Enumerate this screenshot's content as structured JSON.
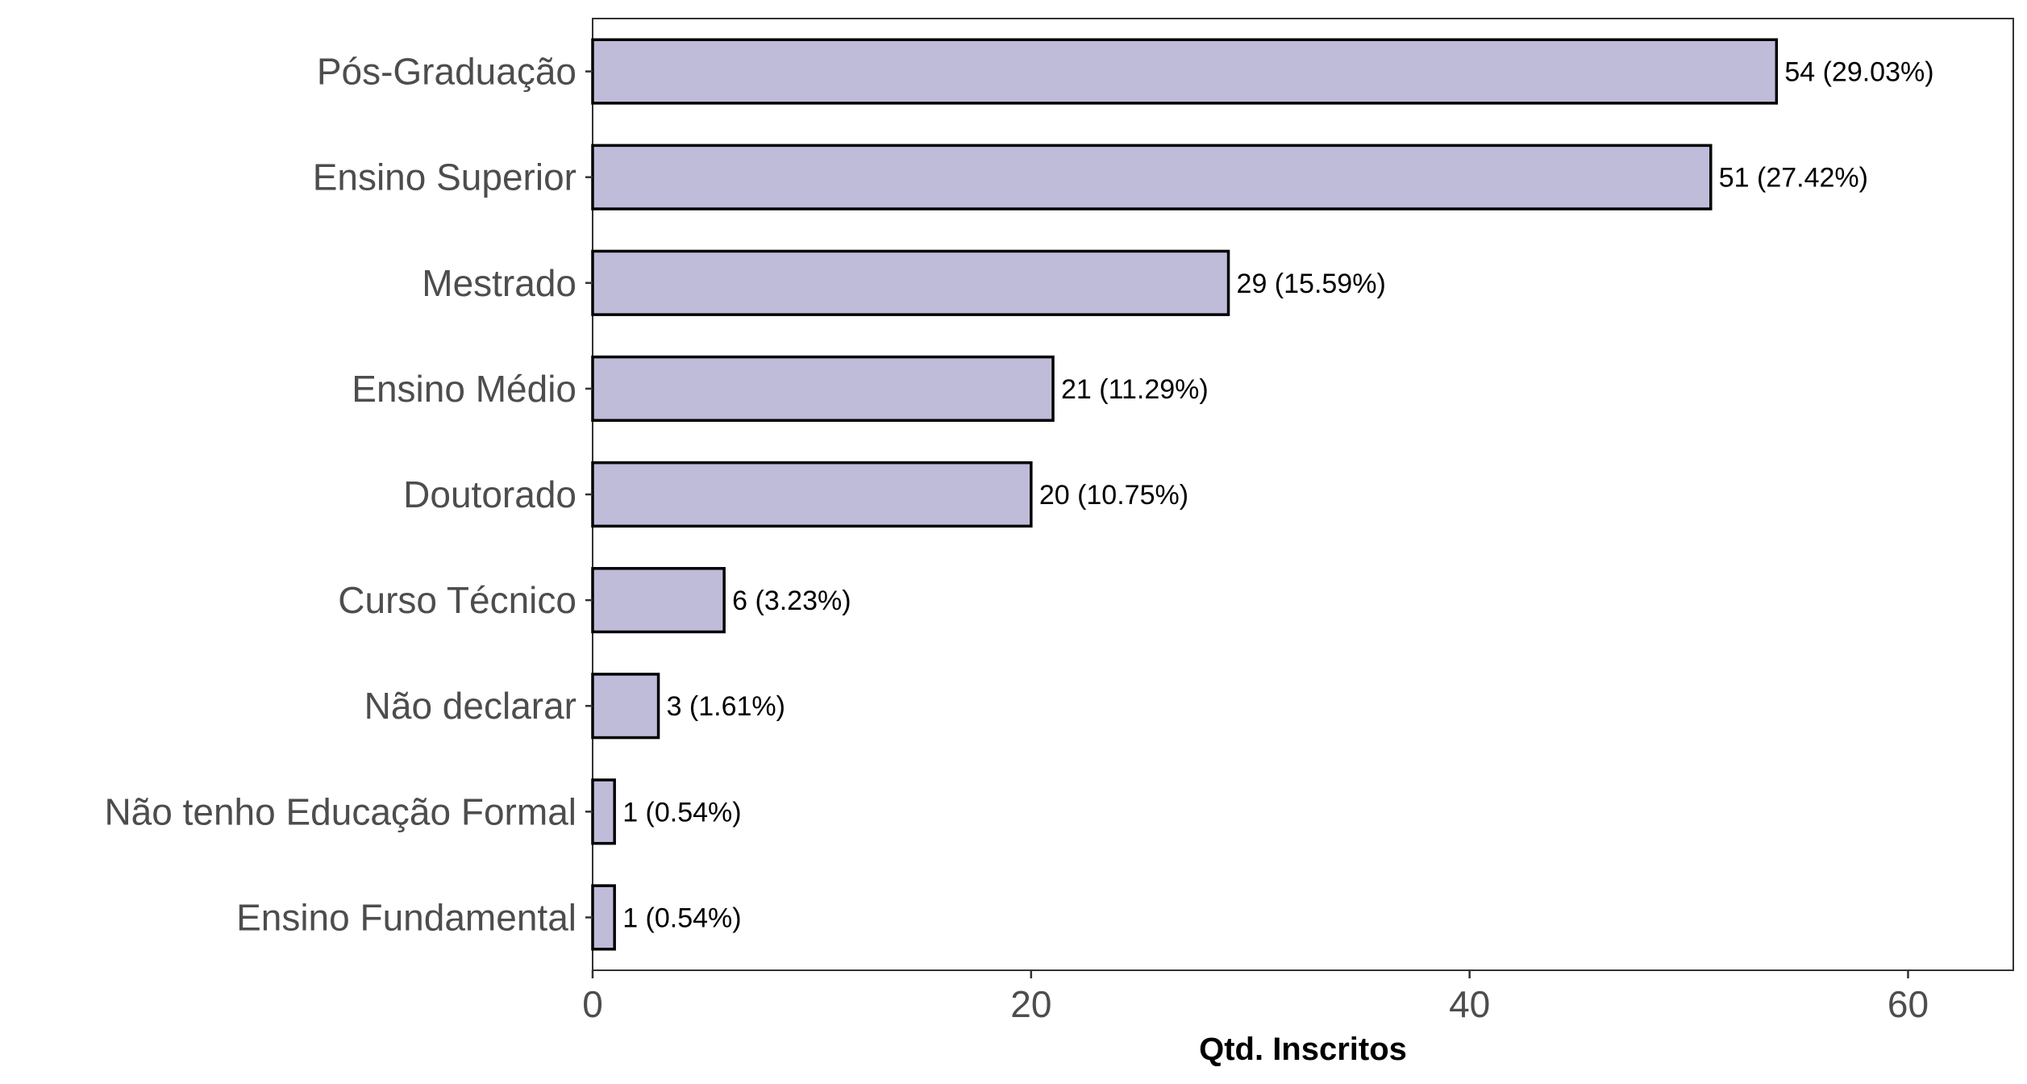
{
  "chart_data": {
    "type": "bar",
    "orientation": "horizontal",
    "categories": [
      "Pós-Graduação",
      "Ensino Superior",
      "Mestrado",
      "Ensino Médio",
      "Doutorado",
      "Curso Técnico",
      "Não declarar",
      "Não tenho Educação Formal",
      "Ensino Fundamental"
    ],
    "values": [
      54,
      51,
      29,
      21,
      20,
      6,
      3,
      1,
      1
    ],
    "data_labels": [
      "54 (29.03%)",
      "51 (27.42%)",
      "29 (15.59%)",
      "21 (11.29%)",
      "20 (10.75%)",
      "6 (3.23%)",
      "3 (1.61%)",
      "1 (0.54%)",
      "1 (0.54%)"
    ],
    "xlabel": "Qtd. Inscritos",
    "ylabel": "",
    "xlim": [
      0,
      64.8
    ],
    "xticks": [
      0,
      20,
      40,
      60
    ],
    "xtick_labels": [
      "0",
      "20",
      "40",
      "60"
    ],
    "grid": false,
    "legend": "none",
    "colors": {
      "bar_fill": "#bebcd9",
      "bar_stroke": "#000000",
      "axis": "#333333",
      "text": "#4d4d4d"
    }
  }
}
